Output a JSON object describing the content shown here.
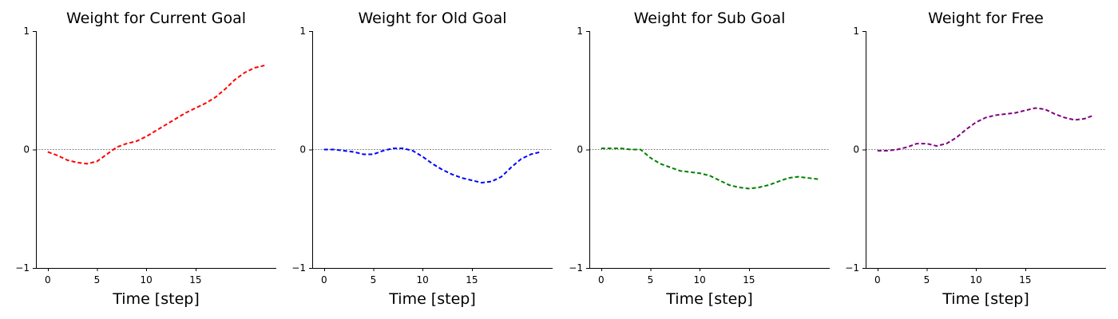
{
  "chart_data": [
    {
      "type": "line",
      "title": "Weight for Current Goal",
      "xlabel": "Time [step]",
      "ylabel": "",
      "ylim": [
        -1,
        1
      ],
      "xticks": [
        0,
        5,
        10,
        15
      ],
      "yticks": [
        -1,
        0,
        1
      ],
      "reference_line": 0,
      "color": "#ff0000",
      "x": [
        0,
        1,
        2,
        3,
        4,
        5,
        6,
        7,
        8,
        9,
        10,
        11,
        12,
        13,
        14,
        15,
        16,
        17,
        18,
        19,
        20,
        21,
        22
      ],
      "y": [
        -0.02,
        -0.05,
        -0.09,
        -0.11,
        -0.12,
        -0.1,
        -0.04,
        0.02,
        0.05,
        0.07,
        0.11,
        0.16,
        0.21,
        0.26,
        0.31,
        0.35,
        0.39,
        0.44,
        0.51,
        0.59,
        0.65,
        0.69,
        0.71
      ]
    },
    {
      "type": "line",
      "title": "Weight for Old Goal",
      "xlabel": "Time [step]",
      "ylabel": "",
      "ylim": [
        -1,
        1
      ],
      "xticks": [
        0,
        5,
        10,
        15
      ],
      "yticks": [
        -1,
        0,
        1
      ],
      "reference_line": 0,
      "color": "#0000ff",
      "x": [
        0,
        1,
        2,
        3,
        4,
        5,
        6,
        7,
        8,
        9,
        10,
        11,
        12,
        13,
        14,
        15,
        16,
        17,
        18,
        19,
        20,
        21,
        22
      ],
      "y": [
        0.0,
        0.0,
        -0.01,
        -0.02,
        -0.04,
        -0.04,
        -0.01,
        0.01,
        0.01,
        -0.01,
        -0.06,
        -0.12,
        -0.17,
        -0.21,
        -0.24,
        -0.26,
        -0.28,
        -0.27,
        -0.23,
        -0.15,
        -0.08,
        -0.04,
        -0.02
      ]
    },
    {
      "type": "line",
      "title": "Weight for Sub Goal",
      "xlabel": "Time [step]",
      "ylabel": "",
      "ylim": [
        -1,
        1
      ],
      "xticks": [
        0,
        5,
        10,
        15
      ],
      "yticks": [
        -1,
        0,
        1
      ],
      "reference_line": 0,
      "color": "#008000",
      "x": [
        0,
        1,
        2,
        3,
        4,
        5,
        6,
        7,
        8,
        9,
        10,
        11,
        12,
        13,
        14,
        15,
        16,
        17,
        18,
        19,
        20,
        21,
        22
      ],
      "y": [
        0.01,
        0.01,
        0.01,
        0.0,
        0.0,
        -0.07,
        -0.12,
        -0.15,
        -0.18,
        -0.19,
        -0.2,
        -0.22,
        -0.26,
        -0.3,
        -0.32,
        -0.33,
        -0.32,
        -0.3,
        -0.27,
        -0.24,
        -0.23,
        -0.24,
        -0.25
      ]
    },
    {
      "type": "line",
      "title": "Weight for Free",
      "xlabel": "Time [step]",
      "ylabel": "",
      "ylim": [
        -1,
        1
      ],
      "xticks": [
        0,
        5,
        10,
        15
      ],
      "yticks": [
        -1,
        0,
        1
      ],
      "reference_line": 0,
      "color": "#800080",
      "x": [
        0,
        1,
        2,
        3,
        4,
        5,
        6,
        7,
        8,
        9,
        10,
        11,
        12,
        13,
        14,
        15,
        16,
        17,
        18,
        19,
        20,
        21,
        22
      ],
      "y": [
        -0.01,
        -0.01,
        0.0,
        0.02,
        0.05,
        0.05,
        0.03,
        0.05,
        0.1,
        0.17,
        0.23,
        0.27,
        0.29,
        0.3,
        0.31,
        0.33,
        0.35,
        0.34,
        0.3,
        0.27,
        0.25,
        0.26,
        0.29
      ]
    }
  ]
}
